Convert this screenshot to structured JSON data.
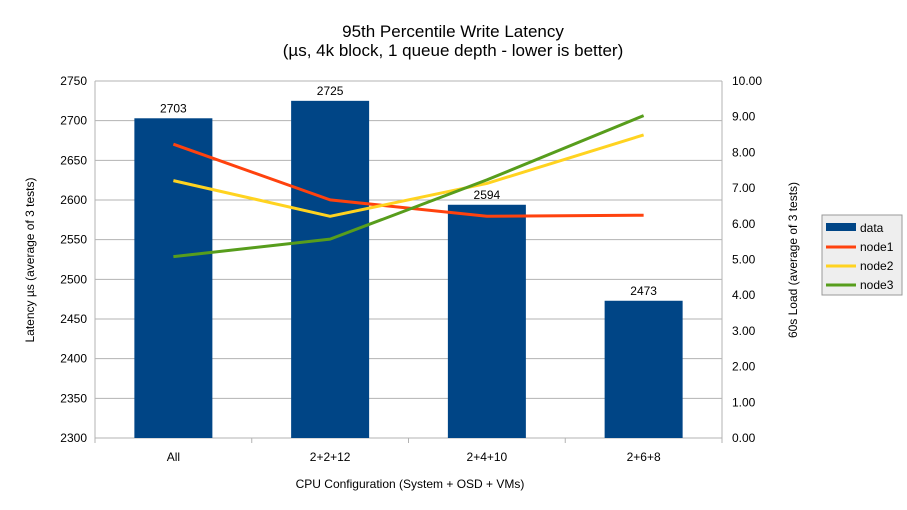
{
  "chart_data": {
    "type": "bar+line",
    "title": "95th Percentile Write Latency",
    "subtitle": "(µs, 4k block, 1 queue depth - lower is better)",
    "xlabel": "CPU Configuration (System + OSD + VMs)",
    "ylabel": "Latency µs (average of 3 tests)",
    "y2label": "60s Load (average of 3 tests)",
    "categories": [
      "All",
      "2+2+12",
      "2+4+10",
      "2+6+8"
    ],
    "ylim": [
      2300,
      2750
    ],
    "yticks": [
      "2300",
      "2350",
      "2400",
      "2450",
      "2500",
      "2550",
      "2600",
      "2650",
      "2700",
      "2750"
    ],
    "y2lim": [
      0,
      10
    ],
    "y2ticks": [
      "0.00",
      "1.00",
      "2.00",
      "3.00",
      "4.00",
      "5.00",
      "6.00",
      "7.00",
      "8.00",
      "9.00",
      "10.00"
    ],
    "grid": true,
    "legend_position": "right",
    "bar_series": {
      "name": "data",
      "color": "#004586",
      "values": [
        2703,
        2725,
        2594,
        2473
      ],
      "labels": [
        "2703",
        "2725",
        "2594",
        "2473"
      ]
    },
    "line_series": [
      {
        "name": "node1",
        "color": "#ff420e",
        "values": [
          8.23,
          6.67,
          6.21,
          6.24
        ]
      },
      {
        "name": "node2",
        "color": "#ffd320",
        "values": [
          7.21,
          6.21,
          7.13,
          8.49
        ]
      },
      {
        "name": "node3",
        "color": "#579d1c",
        "values": [
          5.08,
          5.57,
          7.23,
          9.03
        ]
      }
    ]
  }
}
